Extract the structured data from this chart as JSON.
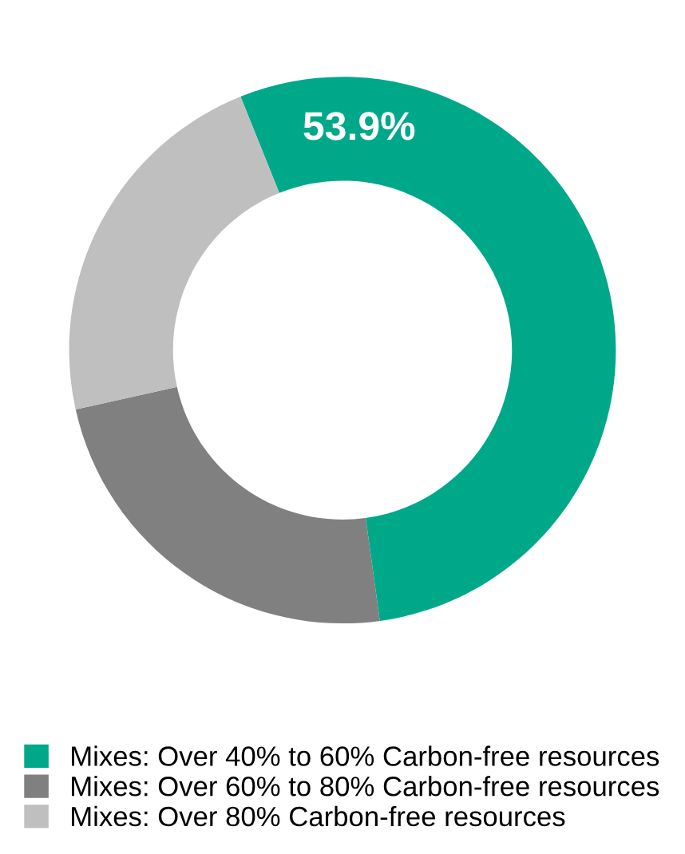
{
  "chart_data": {
    "type": "donut",
    "categories": [
      "Mixes: Over 40% to 60% Carbon-free resources",
      "Mixes: Over 60% to 80% Carbon-free resources",
      "Mixes: Over 80% Carbon-free resources"
    ],
    "values": [
      53.9,
      23.7,
      22.4
    ],
    "colors": [
      "#00a88a",
      "#808080",
      "#bfbfbf"
    ],
    "value_labels": [
      "53.9%",
      null,
      null
    ],
    "legend": "bottom"
  }
}
